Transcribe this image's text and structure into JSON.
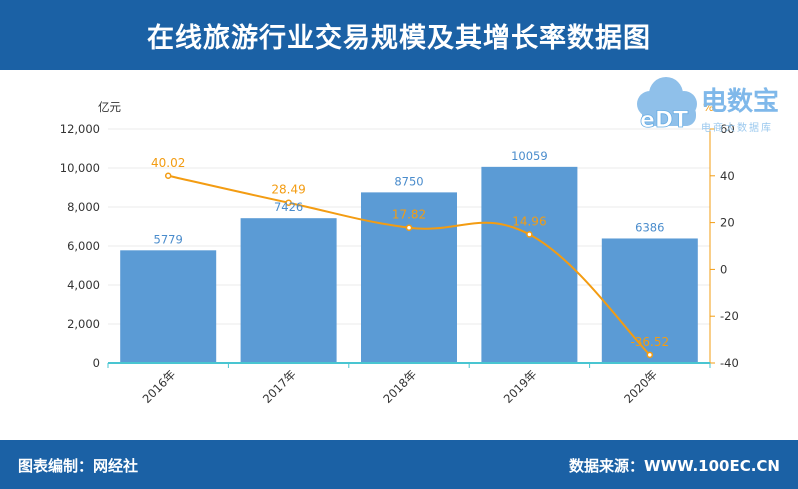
{
  "title": "在线旅游行业交易规模及其增长率数据图",
  "footer": {
    "left": "图表编制：网经社",
    "right": "数据来源：WWW.100EC.CN"
  },
  "logo": {
    "badge": "eDT",
    "name": "电数宝",
    "tagline": "电商大数据库"
  },
  "colors": {
    "header": "#1b61a5",
    "bar": "#5b9bd5",
    "bar_label": "#4a8ccc",
    "line": "#f39c12",
    "axis": "#49c5d1"
  },
  "chart_data": {
    "type": "bar",
    "categories": [
      "2016年",
      "2017年",
      "2018年",
      "2019年",
      "2020年"
    ],
    "series": [
      {
        "values": [
          5779,
          7426,
          8750,
          10059,
          6386
        ],
        "axis": "left",
        "kind": "bar"
      },
      {
        "values": [
          40.02,
          28.49,
          17.82,
          14.96,
          -36.52
        ],
        "axis": "right",
        "kind": "line"
      }
    ],
    "ylabel": "亿元",
    "ylabel_right": "%",
    "ylim": [
      0,
      12000
    ],
    "ylim_right": [
      -40,
      60
    ],
    "yticks": [
      0,
      2000,
      4000,
      6000,
      8000,
      10000,
      12000
    ],
    "yticks_right": [
      -40,
      -20,
      0,
      20,
      40,
      60
    ],
    "grid": true,
    "bar_labels": [
      "5779",
      "7426",
      "8750",
      "10059",
      "6386"
    ],
    "line_labels": [
      "40.02",
      "28.49",
      "17.82",
      "14.96",
      "-36.52"
    ],
    "ytick_labels": [
      "0",
      "2,000",
      "4,000",
      "6,000",
      "8,000",
      "10,000",
      "12,000"
    ],
    "ytick_labels_right": [
      "-40",
      "-20",
      "0",
      "20",
      "40",
      "60"
    ]
  }
}
